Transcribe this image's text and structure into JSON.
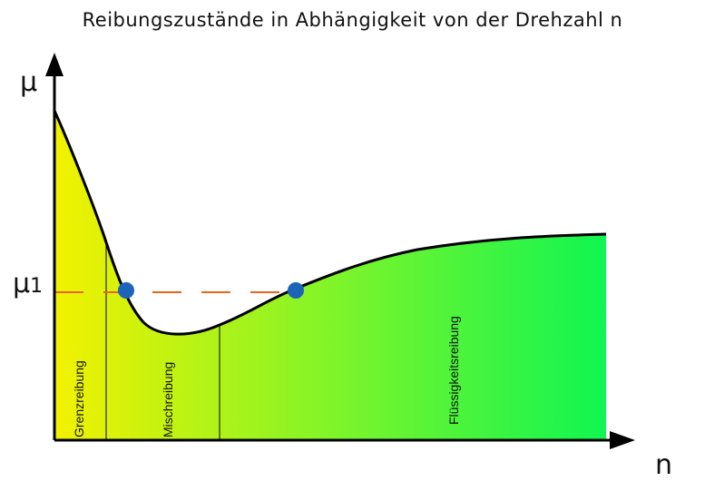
{
  "title": "Reibungszustände in Abhängigkeit von der Drehzahl n",
  "axes": {
    "y_label": "μ",
    "x_label": "n",
    "mu1_base": "μ",
    "mu1_sub": "1"
  },
  "regions": [
    {
      "label": "Grenzreibung"
    },
    {
      "label": "Mischreibung"
    },
    {
      "label": "Flüssigkeitsreibung"
    }
  ],
  "colors": {
    "gradient_start": "#f2f200",
    "gradient_end": "#10f552",
    "curve": "#000000",
    "dashed_line": "#e8651c",
    "points": "#1d63b8"
  }
}
